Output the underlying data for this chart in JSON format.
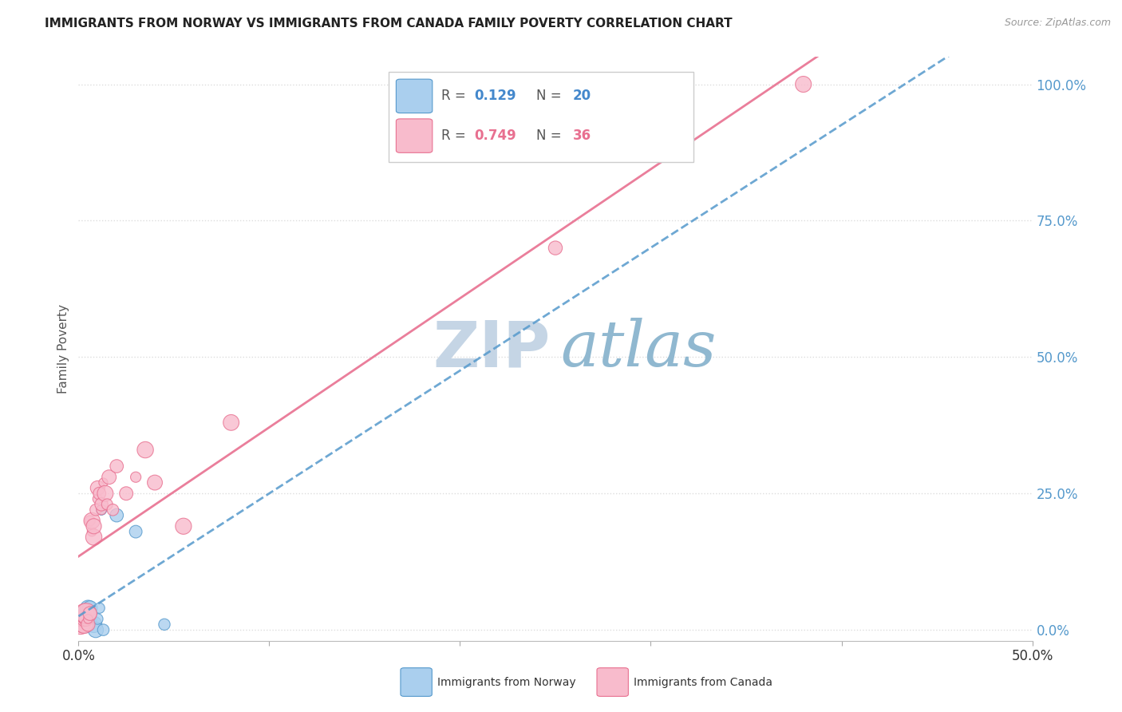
{
  "title": "IMMIGRANTS FROM NORWAY VS IMMIGRANTS FROM CANADA FAMILY POVERTY CORRELATION CHART",
  "source": "Source: ZipAtlas.com",
  "ylabel": "Family Poverty",
  "ytick_labels": [
    "0.0%",
    "25.0%",
    "50.0%",
    "75.0%",
    "100.0%"
  ],
  "ytick_values": [
    0.0,
    0.25,
    0.5,
    0.75,
    1.0
  ],
  "xlim": [
    0.0,
    0.5
  ],
  "ylim": [
    -0.02,
    1.05
  ],
  "norway_R": 0.129,
  "norway_N": 20,
  "canada_R": 0.749,
  "canada_N": 36,
  "norway_fill": "#AACFEE",
  "norway_edge": "#5599CC",
  "canada_fill": "#F8BBCC",
  "canada_edge": "#E87090",
  "norway_x": [
    0.001,
    0.002,
    0.003,
    0.003,
    0.004,
    0.004,
    0.005,
    0.005,
    0.006,
    0.006,
    0.007,
    0.008,
    0.009,
    0.01,
    0.011,
    0.012,
    0.013,
    0.02,
    0.03,
    0.045
  ],
  "norway_y": [
    0.02,
    0.01,
    0.02,
    0.03,
    0.01,
    0.03,
    0.02,
    0.04,
    0.02,
    0.04,
    0.03,
    0.01,
    0.0,
    0.02,
    0.04,
    0.22,
    0.0,
    0.21,
    0.18,
    0.01
  ],
  "canada_x": [
    0.001,
    0.002,
    0.002,
    0.003,
    0.003,
    0.003,
    0.004,
    0.004,
    0.005,
    0.005,
    0.006,
    0.006,
    0.007,
    0.007,
    0.008,
    0.008,
    0.009,
    0.01,
    0.01,
    0.011,
    0.012,
    0.012,
    0.013,
    0.014,
    0.015,
    0.016,
    0.018,
    0.02,
    0.025,
    0.03,
    0.035,
    0.04,
    0.055,
    0.08,
    0.25,
    0.38
  ],
  "canada_y": [
    0.01,
    0.01,
    0.02,
    0.01,
    0.02,
    0.03,
    0.02,
    0.03,
    0.01,
    0.02,
    0.03,
    0.2,
    0.18,
    0.2,
    0.17,
    0.19,
    0.22,
    0.24,
    0.26,
    0.25,
    0.22,
    0.23,
    0.27,
    0.25,
    0.23,
    0.28,
    0.22,
    0.3,
    0.25,
    0.28,
    0.33,
    0.27,
    0.19,
    0.38,
    0.7,
    1.0
  ],
  "watermark_zip_color": "#C5D5E5",
  "watermark_atlas_color": "#90B8D0",
  "background_color": "#FFFFFF",
  "grid_color": "#DDDDDD",
  "grid_linestyle": ":",
  "legend_norway_text_r": "R = ",
  "legend_norway_r_val": "0.129",
  "legend_norway_n_text": "  N = ",
  "legend_norway_n_val": "20",
  "legend_canada_text_r": "R = ",
  "legend_canada_r_val": "0.749",
  "legend_canada_n_text": "  N = ",
  "legend_canada_n_val": "36"
}
